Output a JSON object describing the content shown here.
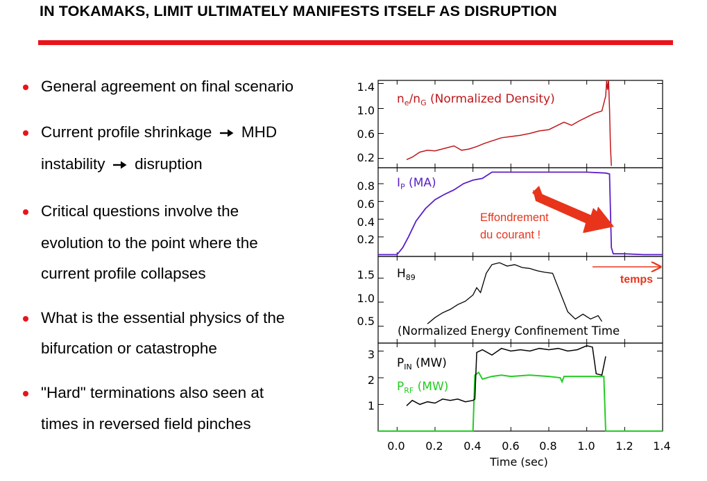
{
  "title": "IN TOKAMAKS, LIMIT ULTIMATELY MANIFESTS ITSELF AS DISRUPTION",
  "accent_color": "#e8141b",
  "bullets": [
    {
      "text": "General agreement on final scenario"
    },
    {
      "line1_a": "Current profile shrinkage",
      "line1_b": "MHD",
      "line2_a": "instability",
      "line2_b": "disruption",
      "arrow_icon": "right-arrow-icon"
    },
    {
      "line1": "Critical questions involve the",
      "line2": "evolution to the point where the",
      "line3": "current profile collapses"
    },
    {
      "line1": "What is the essential physics of the",
      "line2": "bifurcation or catastrophe"
    },
    {
      "line1": "\"Hard\" terminations also seen at",
      "line2": "times in reversed field pinches"
    }
  ],
  "figure": {
    "panels": [
      {
        "label_main": "n",
        "label_sub1": "e",
        "label_mid": "/n",
        "label_sub2": "G",
        "label_tail": " (Normalized Density)",
        "yticks": [
          "1.4",
          "1.0",
          "0.6",
          "0.2"
        ],
        "ylim": [
          0.05,
          1.45
        ],
        "color": "#c0161a"
      },
      {
        "label_main": "I",
        "label_sub1": "P",
        "label_tail": " (MA)",
        "yticks": [
          "0.8",
          "0.6",
          "0.4",
          "0.2"
        ],
        "ylim": [
          -0.02,
          0.98
        ],
        "color": "#5a1fc8",
        "annotation_line1": "Effondrement",
        "annotation_line2": "du courant !",
        "annotation_color": "#e8341b"
      },
      {
        "label_main": "H",
        "label_sub1": "89",
        "caption": "(Normalized Energy Confinement Time",
        "yticks": [
          "1.5",
          "1.0",
          "0.5"
        ],
        "ylim": [
          0.15,
          1.95
        ],
        "color": "#000000",
        "arrow_label": "temps",
        "arrow_color": "#e8341b"
      },
      {
        "label_pin_main": "P",
        "label_pin_sub": "IN",
        "label_pin_tail": " (MW)",
        "label_prf_main": "P",
        "label_prf_sub": "RF",
        "label_prf_tail": " (MW)",
        "yticks": [
          "3",
          "2",
          "1"
        ],
        "ylim": [
          0,
          3.3
        ],
        "pin_color": "#000000",
        "prf_color": "#22cc22"
      }
    ],
    "xaxis": {
      "label": "Time (sec)",
      "ticks": [
        "0.0",
        "0.2",
        "0.4",
        "0.6",
        "0.8",
        "1.0",
        "1.2",
        "1.4"
      ],
      "xlim": [
        -0.1,
        1.4
      ]
    }
  },
  "chart_data": [
    {
      "type": "line",
      "title": "",
      "xlabel": "Time (sec)",
      "ylabel": "",
      "xlim": [
        -0.1,
        1.4
      ],
      "ylim": [
        0.05,
        1.45
      ],
      "series": [
        {
          "name": "ne/nG (Normalized Density)",
          "x": [
            0.05,
            0.08,
            0.12,
            0.16,
            0.2,
            0.25,
            0.3,
            0.34,
            0.38,
            0.42,
            0.46,
            0.5,
            0.55,
            0.6,
            0.65,
            0.7,
            0.75,
            0.8,
            0.84,
            0.88,
            0.92,
            0.96,
            1.0,
            1.04,
            1.08,
            1.1,
            1.105,
            1.11,
            1.115,
            1.12,
            1.125,
            1.13
          ],
          "y": [
            0.18,
            0.22,
            0.3,
            0.33,
            0.32,
            0.36,
            0.4,
            0.33,
            0.35,
            0.39,
            0.44,
            0.48,
            0.53,
            0.55,
            0.57,
            0.6,
            0.64,
            0.66,
            0.72,
            0.78,
            0.73,
            0.8,
            0.86,
            0.92,
            0.96,
            1.2,
            1.45,
            1.3,
            1.45,
            1.0,
            0.4,
            0.08
          ]
        }
      ]
    },
    {
      "type": "line",
      "title": "",
      "xlabel": "Time (sec)",
      "ylabel": "",
      "xlim": [
        -0.1,
        1.4
      ],
      "ylim": [
        -0.02,
        0.98
      ],
      "series": [
        {
          "name": "IP (MA)",
          "x": [
            -0.1,
            0.0,
            0.03,
            0.06,
            0.1,
            0.15,
            0.2,
            0.25,
            0.3,
            0.35,
            0.4,
            0.45,
            0.5,
            0.6,
            0.7,
            0.8,
            0.9,
            1.0,
            1.1,
            1.12,
            1.13,
            1.14,
            1.2,
            1.3,
            1.4
          ],
          "y": [
            0.0,
            0.0,
            0.08,
            0.2,
            0.38,
            0.52,
            0.62,
            0.68,
            0.73,
            0.8,
            0.84,
            0.86,
            0.93,
            0.93,
            0.93,
            0.93,
            0.93,
            0.93,
            0.92,
            0.91,
            0.08,
            0.01,
            0.01,
            0.0,
            0.0
          ]
        }
      ]
    },
    {
      "type": "line",
      "title": "",
      "xlabel": "Time (sec)",
      "ylabel": "",
      "xlim": [
        -0.1,
        1.4
      ],
      "ylim": [
        0.15,
        1.95
      ],
      "series": [
        {
          "name": "H89",
          "x": [
            0.16,
            0.2,
            0.24,
            0.28,
            0.32,
            0.36,
            0.4,
            0.42,
            0.44,
            0.47,
            0.5,
            0.54,
            0.58,
            0.62,
            0.66,
            0.7,
            0.74,
            0.78,
            0.82,
            0.86,
            0.9,
            0.94,
            0.98,
            1.02,
            1.06,
            1.08
          ],
          "y": [
            0.55,
            0.68,
            0.78,
            0.85,
            0.95,
            1.02,
            1.15,
            1.3,
            1.2,
            1.6,
            1.78,
            1.82,
            1.75,
            1.78,
            1.72,
            1.7,
            1.65,
            1.62,
            1.6,
            1.2,
            0.8,
            0.65,
            0.75,
            0.65,
            0.72,
            0.6
          ]
        }
      ]
    },
    {
      "type": "line",
      "title": "",
      "xlabel": "Time (sec)",
      "ylabel": "",
      "xlim": [
        -0.1,
        1.4
      ],
      "ylim": [
        0,
        3.3
      ],
      "series": [
        {
          "name": "PIN (MW)",
          "x": [
            0.05,
            0.08,
            0.12,
            0.16,
            0.2,
            0.24,
            0.28,
            0.32,
            0.36,
            0.4,
            0.41,
            0.42,
            0.45,
            0.5,
            0.55,
            0.6,
            0.65,
            0.7,
            0.75,
            0.8,
            0.85,
            0.9,
            0.95,
            1.0,
            1.03,
            1.05,
            1.08,
            1.1
          ],
          "y": [
            0.95,
            1.15,
            1.0,
            1.1,
            1.05,
            1.2,
            1.15,
            1.2,
            1.1,
            1.15,
            1.2,
            2.95,
            3.05,
            2.85,
            3.1,
            3.0,
            3.05,
            3.0,
            3.1,
            3.05,
            3.1,
            3.0,
            3.05,
            3.2,
            3.15,
            2.15,
            2.1,
            2.8
          ]
        },
        {
          "name": "PRF (MW)",
          "x": [
            -0.1,
            0.4,
            0.41,
            0.43,
            0.45,
            0.5,
            0.55,
            0.6,
            0.7,
            0.8,
            0.86,
            0.87,
            0.88,
            0.95,
            1.0,
            1.05,
            1.09,
            1.1,
            1.2,
            1.4
          ],
          "y": [
            0.0,
            0.0,
            2.1,
            2.2,
            1.95,
            2.05,
            2.1,
            2.05,
            2.1,
            2.05,
            2.0,
            1.85,
            2.05,
            2.05,
            2.05,
            2.05,
            2.05,
            0.0,
            0.0,
            0.0
          ]
        }
      ]
    }
  ]
}
